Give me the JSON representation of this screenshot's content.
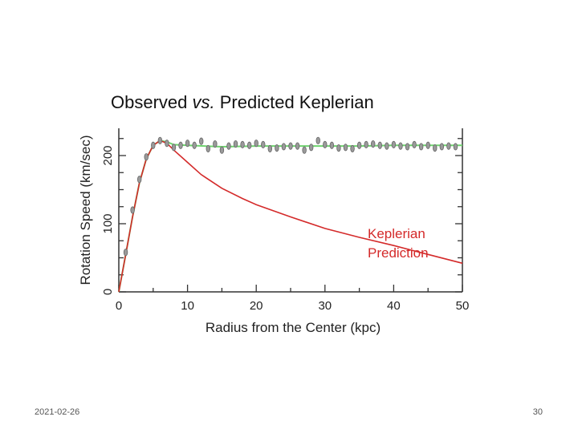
{
  "footer": {
    "date": "2021-02-26",
    "page": "30"
  },
  "chart_data": {
    "type": "line",
    "title": "Observed vs. Predicted Keplerian",
    "title_parts": [
      "Observed ",
      "vs.",
      " Predicted Keplerian"
    ],
    "xlabel": "Radius from the Center (kpc)",
    "ylabel": "Rotation Speed (km/sec)",
    "xlim": [
      0,
      50
    ],
    "ylim": [
      0,
      240
    ],
    "xticks": [
      0,
      10,
      20,
      30,
      40,
      50
    ],
    "yticks": [
      0,
      100,
      200
    ],
    "annotation": [
      "Keplerian",
      "Prediction"
    ],
    "colors": {
      "observed": "#6fd36f",
      "keplerian": "#d42a2a",
      "points": "#777777"
    },
    "series": [
      {
        "name": "Keplerian Prediction",
        "x": [
          0,
          1,
          2,
          3,
          4,
          5,
          6,
          7,
          8,
          10,
          12,
          15,
          18,
          20,
          25,
          30,
          35,
          40,
          45,
          50
        ],
        "y": [
          0,
          55,
          110,
          160,
          195,
          215,
          222,
          218,
          208,
          190,
          172,
          152,
          137,
          128,
          110,
          93,
          80,
          68,
          55,
          42
        ]
      },
      {
        "x": [
          0,
          1,
          2,
          3,
          4,
          5,
          6,
          7,
          8,
          10,
          15,
          20,
          25,
          30,
          35,
          40,
          45,
          50
        ],
        "y": [
          0,
          55,
          110,
          160,
          195,
          215,
          222,
          220,
          216,
          215,
          213,
          214,
          214,
          214,
          214,
          215,
          215,
          215
        ]
      }
    ],
    "observations": {
      "x": [
        0,
        1,
        2,
        3,
        4,
        5,
        6,
        7,
        8,
        9,
        10,
        11,
        12,
        13,
        14,
        15,
        16,
        17,
        18,
        19,
        20,
        21,
        22,
        23,
        24,
        25,
        26,
        27,
        28,
        29,
        30,
        31,
        32,
        33,
        34,
        35,
        36,
        37,
        38,
        39,
        40,
        41,
        42,
        43,
        44,
        45,
        46,
        47,
        48,
        49
      ],
      "y": [
        0,
        58,
        120,
        165,
        198,
        215,
        222,
        218,
        212,
        215,
        218,
        215,
        221,
        210,
        217,
        208,
        214,
        217,
        216,
        215,
        218,
        216,
        210,
        211,
        213,
        214,
        214,
        208,
        212,
        222,
        216,
        215,
        211,
        212,
        210,
        215,
        216,
        217,
        215,
        214,
        216,
        214,
        213,
        216,
        213,
        215,
        211,
        213,
        214,
        213
      ]
    }
  }
}
